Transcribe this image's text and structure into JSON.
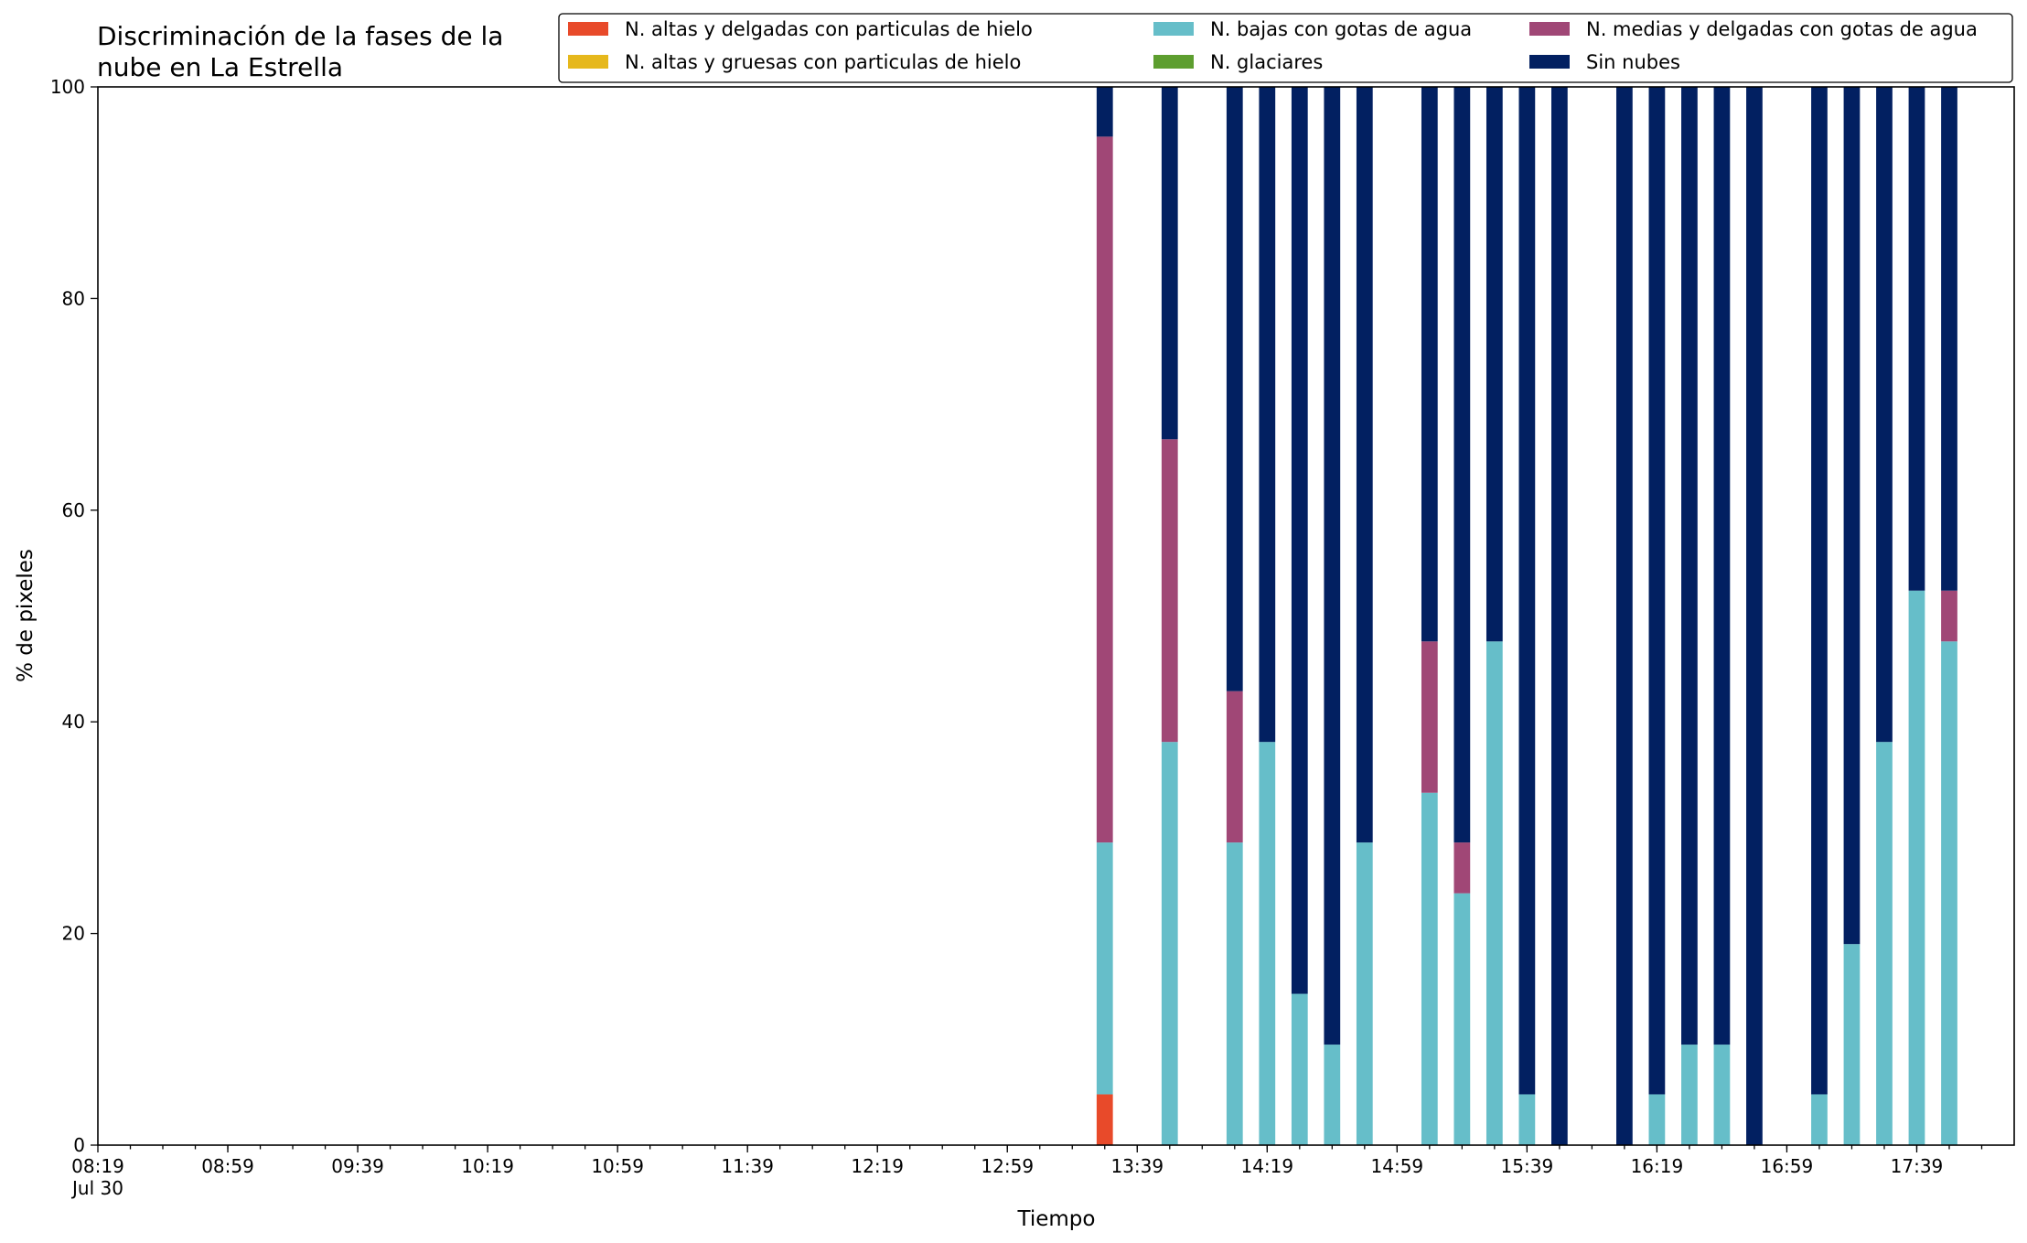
{
  "chart_data": {
    "type": "bar",
    "stacked": true,
    "title_lines": [
      "Discriminación de la fases de la",
      "nube en La Estrella"
    ],
    "xlabel": "Tiempo",
    "ylabel": "% de pixeles",
    "ylim": [
      0,
      100
    ],
    "yticks": [
      0,
      20,
      40,
      60,
      80,
      100
    ],
    "x_axis": {
      "start": "08:19",
      "end": "18:09",
      "major_ticks": [
        {
          "time": "08:19",
          "label": "08:19",
          "sublabel": "Jul 30"
        },
        {
          "time": "08:59",
          "label": "08:59"
        },
        {
          "time": "09:39",
          "label": "09:39"
        },
        {
          "time": "10:19",
          "label": "10:19"
        },
        {
          "time": "10:59",
          "label": "10:59"
        },
        {
          "time": "11:39",
          "label": "11:39"
        },
        {
          "time": "12:19",
          "label": "12:19"
        },
        {
          "time": "12:59",
          "label": "12:59"
        },
        {
          "time": "13:39",
          "label": "13:39"
        },
        {
          "time": "14:19",
          "label": "14:19"
        },
        {
          "time": "14:59",
          "label": "14:59"
        },
        {
          "time": "15:39",
          "label": "15:39"
        },
        {
          "time": "16:19",
          "label": "16:19"
        },
        {
          "time": "16:59",
          "label": "16:59"
        },
        {
          "time": "17:39",
          "label": "17:39"
        }
      ],
      "minor_tick_interval_minutes": 10,
      "bar_width_minutes": 5
    },
    "legend": {
      "placement": "top-right",
      "columns": 3,
      "ncol_order": [
        [
          "N. altas y delgadas con particulas de hielo",
          "N. altas y gruesas con particulas de hielo"
        ],
        [
          "N. bajas con gotas de agua",
          "N. glaciares"
        ],
        [
          "N. medias y delgadas con gotas de agua",
          "Sin nubes"
        ]
      ]
    },
    "x": [
      "13:29",
      "13:49",
      "14:09",
      "14:19",
      "14:29",
      "14:39",
      "14:49",
      "15:09",
      "15:19",
      "15:29",
      "15:39",
      "15:49",
      "16:09",
      "16:19",
      "16:29",
      "16:39",
      "16:49",
      "17:09",
      "17:19",
      "17:29",
      "17:39",
      "17:49"
    ],
    "series": [
      {
        "name": "N. altas y delgadas con particulas de hielo",
        "color": "#e84a2a",
        "values": [
          4.8,
          0,
          0,
          0,
          0,
          0,
          0,
          0,
          0,
          0,
          0,
          0,
          0,
          0,
          0,
          0,
          0,
          0,
          0,
          0,
          0,
          0
        ]
      },
      {
        "name": "N. altas y gruesas con particulas de hielo",
        "color": "#e6b81c",
        "values": [
          0,
          0,
          0,
          0,
          0,
          0,
          0,
          0,
          0,
          0,
          0,
          0,
          0,
          0,
          0,
          0,
          0,
          0,
          0,
          0,
          0,
          0
        ]
      },
      {
        "name": "N. bajas con gotas de agua",
        "color": "#66bec9",
        "values": [
          23.8,
          38.1,
          28.6,
          38.1,
          14.3,
          9.5,
          28.6,
          33.3,
          23.8,
          47.6,
          4.8,
          0,
          0,
          4.8,
          9.5,
          9.5,
          0,
          4.8,
          19.0,
          38.1,
          52.4,
          47.6
        ]
      },
      {
        "name": "N. glaciares",
        "color": "#5d9e2f",
        "values": [
          0,
          0,
          0,
          0,
          0,
          0,
          0,
          0,
          0,
          0,
          0,
          0,
          0,
          0,
          0,
          0,
          0,
          0,
          0,
          0,
          0,
          0
        ]
      },
      {
        "name": "N. medias y delgadas con gotas de agua",
        "color": "#a04776",
        "values": [
          66.7,
          28.6,
          14.3,
          0,
          0,
          0,
          0,
          14.3,
          4.8,
          0,
          0,
          0,
          0,
          0,
          0,
          0,
          0,
          0,
          0,
          0,
          0,
          4.8
        ]
      },
      {
        "name": "Sin nubes",
        "color": "#022061",
        "values": [
          4.7,
          33.3,
          57.1,
          61.9,
          85.7,
          90.5,
          71.4,
          52.4,
          71.4,
          52.4,
          95.2,
          100,
          100,
          95.2,
          90.5,
          90.5,
          100,
          95.2,
          81.0,
          61.9,
          47.6,
          47.6
        ]
      }
    ]
  }
}
